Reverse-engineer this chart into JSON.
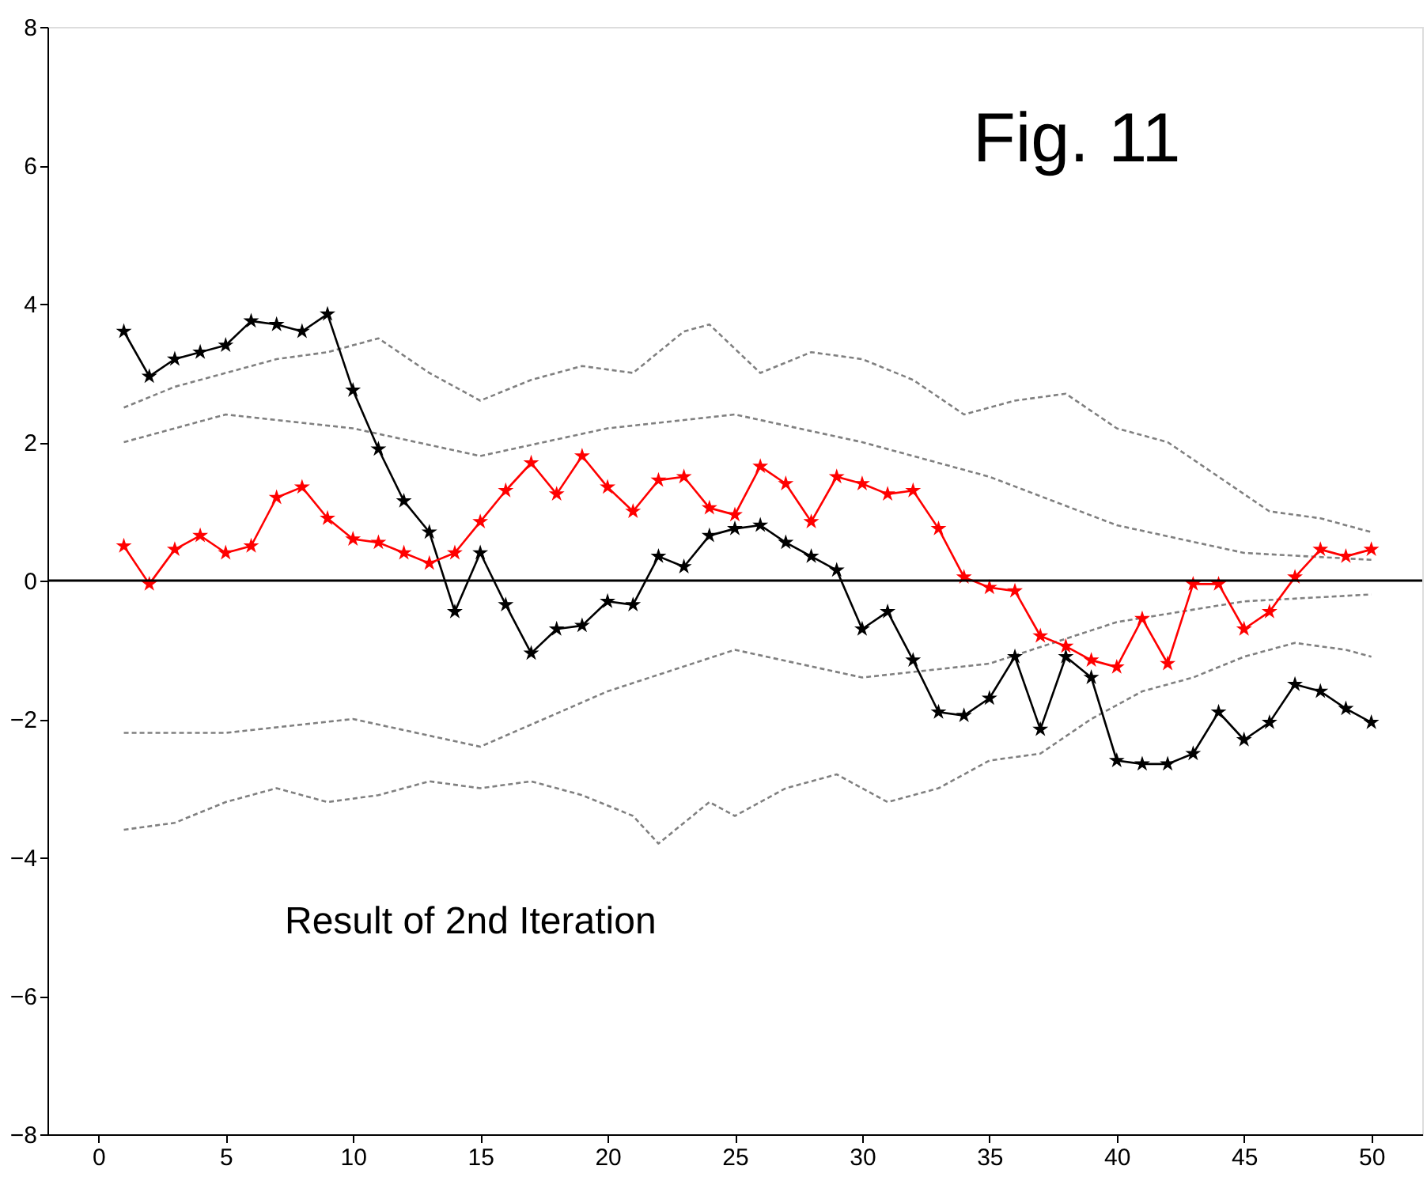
{
  "chart_data": {
    "type": "line",
    "title": "Fig. 11",
    "annotations": [
      "Result of 2nd Iteration"
    ],
    "xlim": [
      -2,
      52
    ],
    "xticks": [
      0,
      5,
      10,
      15,
      20,
      25,
      30,
      35,
      40,
      45,
      50
    ],
    "ylim": [
      -8,
      8
    ],
    "yticks": [
      -8,
      -6,
      -4,
      -2,
      0,
      2,
      4,
      6,
      8
    ],
    "grid": false,
    "ref_lines": [
      {
        "axis": "y",
        "value": 0,
        "color": "#000000"
      }
    ],
    "series": [
      {
        "color": "#808080",
        "line_style": "dashed",
        "marker": "none",
        "x": [
          1,
          3,
          5,
          7,
          9,
          11,
          13,
          15,
          17,
          19,
          21,
          23,
          24,
          26,
          28,
          30,
          32,
          34,
          36,
          38,
          40,
          42,
          44,
          46,
          48,
          50
        ],
        "values": [
          2.5,
          2.8,
          3.0,
          3.2,
          3.3,
          3.5,
          3.0,
          2.6,
          2.9,
          3.1,
          3.0,
          3.6,
          3.7,
          3.0,
          3.3,
          3.2,
          2.9,
          2.4,
          2.6,
          2.7,
          2.2,
          2.0,
          1.5,
          1.0,
          0.9,
          0.7
        ]
      },
      {
        "color": "#808080",
        "line_style": "dashed",
        "marker": "none",
        "x": [
          1,
          3,
          5,
          7,
          9,
          11,
          13,
          15,
          17,
          19,
          21,
          22,
          24,
          25,
          27,
          29,
          31,
          33,
          35,
          37,
          39,
          41,
          43,
          45,
          47,
          49,
          50
        ],
        "values": [
          -3.6,
          -3.5,
          -3.2,
          -3.0,
          -3.2,
          -3.1,
          -2.9,
          -3.0,
          -2.9,
          -3.1,
          -3.4,
          -3.8,
          -3.2,
          -3.4,
          -3.0,
          -2.8,
          -3.2,
          -3.0,
          -2.6,
          -2.5,
          -2.0,
          -1.6,
          -1.4,
          -1.1,
          -0.9,
          -1.0,
          -1.1
        ]
      },
      {
        "color": "#808080",
        "line_style": "dashed",
        "marker": "none",
        "x": [
          1,
          5,
          10,
          15,
          20,
          25,
          30,
          35,
          40,
          45,
          50
        ],
        "values": [
          2.0,
          2.4,
          2.2,
          1.8,
          2.2,
          2.4,
          2.0,
          1.5,
          0.8,
          0.4,
          0.3
        ]
      },
      {
        "color": "#808080",
        "line_style": "dashed",
        "marker": "none",
        "x": [
          1,
          5,
          10,
          15,
          20,
          25,
          30,
          35,
          40,
          45,
          50
        ],
        "values": [
          -2.2,
          -2.2,
          -2.0,
          -2.4,
          -1.6,
          -1.0,
          -1.4,
          -1.2,
          -0.6,
          -0.3,
          -0.2
        ]
      },
      {
        "color": "#000000",
        "line_style": "solid",
        "marker": "star",
        "x": [
          1,
          2,
          3,
          4,
          5,
          6,
          7,
          8,
          9,
          10,
          11,
          12,
          13,
          14,
          15,
          16,
          17,
          18,
          19,
          20,
          21,
          22,
          23,
          24,
          25,
          26,
          27,
          28,
          29,
          30,
          31,
          32,
          33,
          34,
          35,
          36,
          37,
          38,
          39,
          40,
          41,
          42,
          43,
          44,
          45,
          46,
          47,
          48,
          49,
          50
        ],
        "values": [
          3.6,
          2.95,
          3.2,
          3.3,
          3.4,
          3.75,
          3.7,
          3.6,
          3.85,
          2.75,
          1.9,
          1.15,
          0.7,
          -0.45,
          0.4,
          -0.35,
          -1.05,
          -0.7,
          -0.65,
          -0.3,
          -0.35,
          0.35,
          0.2,
          0.65,
          0.75,
          0.8,
          0.55,
          0.35,
          0.15,
          -0.7,
          -0.45,
          -1.15,
          -1.9,
          -1.95,
          -1.7,
          -1.1,
          -2.15,
          -1.1,
          -1.4,
          -2.6,
          -2.65,
          -2.65,
          -2.5,
          -1.9,
          -2.3,
          -2.05,
          -1.5,
          -1.6,
          -1.85,
          -2.05
        ]
      },
      {
        "color": "#ff0000",
        "line_style": "solid",
        "marker": "star",
        "x": [
          1,
          2,
          3,
          4,
          5,
          6,
          7,
          8,
          9,
          10,
          11,
          12,
          13,
          14,
          15,
          16,
          17,
          18,
          19,
          20,
          21,
          22,
          23,
          24,
          25,
          26,
          27,
          28,
          29,
          30,
          31,
          32,
          33,
          34,
          35,
          36,
          37,
          38,
          39,
          40,
          41,
          42,
          43,
          44,
          45,
          46,
          47,
          48,
          49,
          50
        ],
        "values": [
          0.5,
          -0.05,
          0.45,
          0.65,
          0.4,
          0.5,
          1.2,
          1.35,
          0.9,
          0.6,
          0.55,
          0.4,
          0.25,
          0.4,
          0.85,
          1.3,
          1.7,
          1.25,
          1.8,
          1.35,
          1.0,
          1.45,
          1.5,
          1.05,
          0.95,
          1.65,
          1.4,
          0.85,
          1.5,
          1.4,
          1.25,
          1.3,
          0.75,
          0.05,
          -0.1,
          -0.15,
          -0.8,
          -0.95,
          -1.15,
          -1.25,
          -0.55,
          -1.2,
          -0.05,
          -0.05,
          -0.7,
          -0.45,
          0.05,
          0.45,
          0.35,
          0.45
        ]
      }
    ]
  }
}
